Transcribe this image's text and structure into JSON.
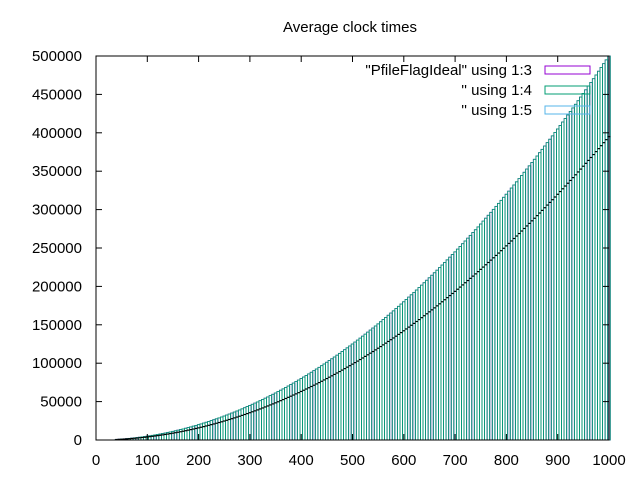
{
  "chart_data": {
    "type": "bar",
    "title": "Average clock times",
    "xlabel": "",
    "ylabel": "",
    "xlim": [
      0,
      1000
    ],
    "ylim": [
      0,
      500000
    ],
    "x_ticks": [
      0,
      100,
      200,
      300,
      400,
      500,
      600,
      700,
      800,
      900,
      1000
    ],
    "y_ticks": [
      0,
      50000,
      100000,
      150000,
      200000,
      250000,
      300000,
      350000,
      400000,
      450000,
      500000
    ],
    "grid": false,
    "legend_position": "top-right",
    "x_start": 40,
    "x_end": 1000,
    "x_step": 5,
    "series": [
      {
        "name": "\"PfileFlagIdeal\" using 1:3",
        "color": "#9400d3",
        "style": "boxes",
        "coef": 0.5
      },
      {
        "name": "'' using 1:4",
        "color": "#009e73",
        "style": "boxes",
        "coef": 0.5
      },
      {
        "name": "'' using 1:5",
        "color": "#56b4e9",
        "style": "boxes",
        "coef": 0.395
      }
    ]
  }
}
